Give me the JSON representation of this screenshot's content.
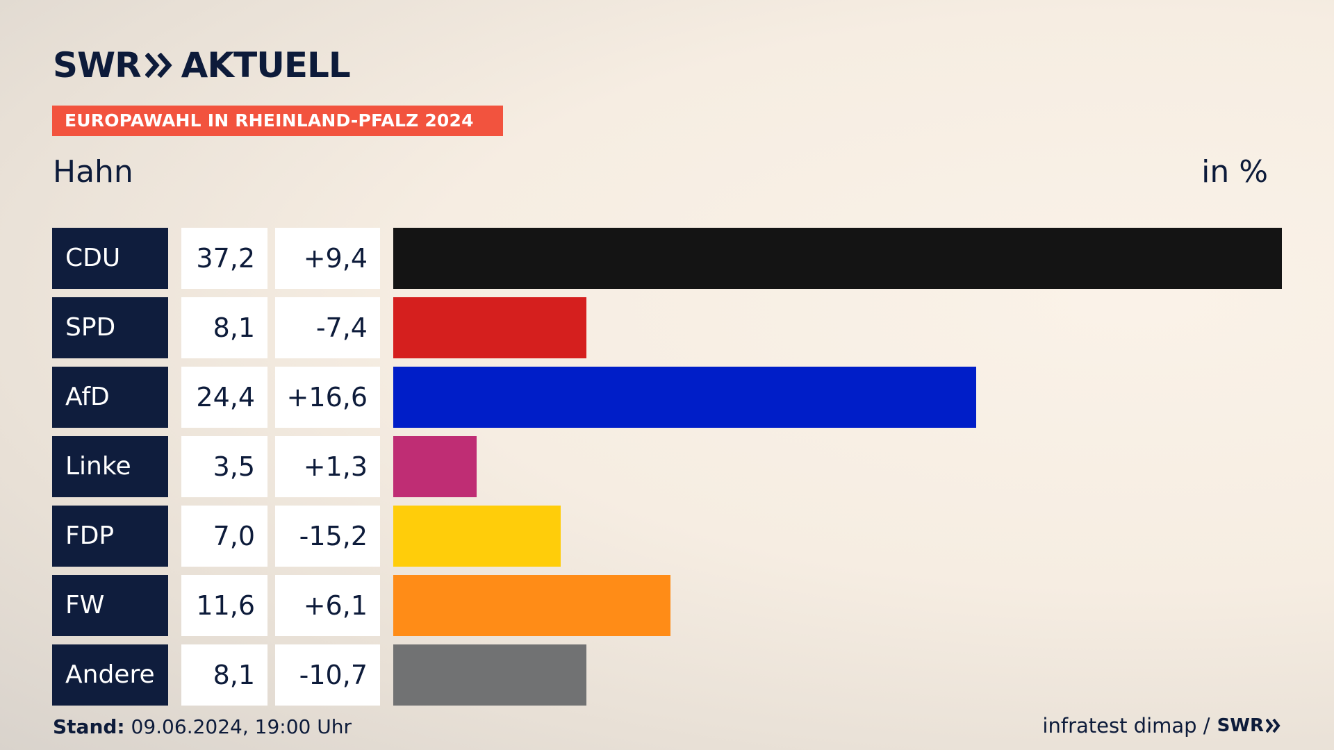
{
  "header": {
    "logo_primary": "SWR",
    "logo_secondary": "AKTUELL",
    "election_label": "EUROPAWAHL IN RHEINLAND-PFALZ 2024",
    "region": "Hahn",
    "unit": "in %"
  },
  "chart_data": {
    "type": "bar",
    "orientation": "horizontal",
    "categories": [
      "CDU",
      "SPD",
      "AfD",
      "Linke",
      "FDP",
      "FW",
      "Andere"
    ],
    "values": [
      37.2,
      8.1,
      24.4,
      3.5,
      7.0,
      11.6,
      8.1
    ],
    "value_labels": [
      "37,2",
      "8,1",
      "24,4",
      "3,5",
      "7,0",
      "11,6",
      "8,1"
    ],
    "changes": [
      9.4,
      -7.4,
      16.6,
      1.3,
      -15.2,
      6.1,
      -10.7
    ],
    "change_labels": [
      "+9,4",
      "-7,4",
      "+16,6",
      "+1,3",
      "-15,2",
      "+6,1",
      "-10,7"
    ],
    "colors": [
      "#141414",
      "#d51f1e",
      "#001ec8",
      "#bf2d74",
      "#ffcd0a",
      "#ff8c17",
      "#717273"
    ],
    "xlim": [
      0,
      37.2
    ],
    "grid": false,
    "legend": "none"
  },
  "footer": {
    "stand_label": "Stand:",
    "stand_value": "09.06.2024, 19:00 Uhr",
    "source": "infratest dimap /",
    "source_logo": "SWR"
  }
}
